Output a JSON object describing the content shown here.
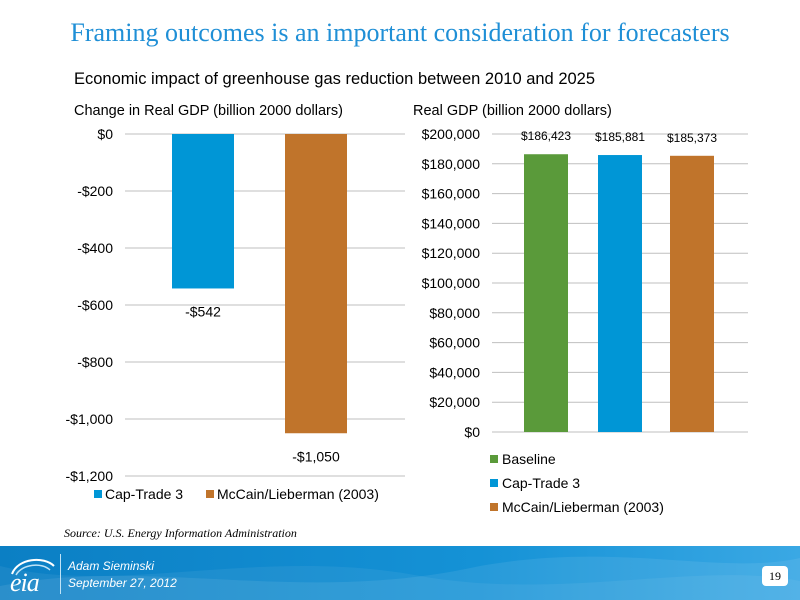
{
  "slide": {
    "title": "Framing outcomes is an important consideration for forecasters",
    "subtitle": "Economic impact of greenhouse gas reduction between 2010 and 2025",
    "source": "Source:  U.S. Energy Information Administration",
    "presenter": "Adam Sieminski",
    "date": "September 27, 2012",
    "page_number": "19",
    "logo_text": "eia",
    "accent_color": "#1f8fd6"
  },
  "chart_data": [
    {
      "type": "bar",
      "title": "Change in Real GDP (billion 2000 dollars)",
      "categories": [
        "Cap-Trade 3",
        "McCain/Lieberman (2003)"
      ],
      "values": [
        -542,
        -1050
      ],
      "data_labels": [
        "-$542",
        "-$1,050"
      ],
      "colors": [
        "#0096d6",
        "#c0742b"
      ],
      "ylim": [
        -1200,
        0
      ],
      "yticks": [
        0,
        -200,
        -400,
        -600,
        -800,
        -1000,
        -1200
      ],
      "ytick_labels": [
        "$0",
        "-$200",
        "-$400",
        "-$600",
        "-$800",
        "-$1,000",
        "-$1,200"
      ],
      "grid": true,
      "legend": [
        "Cap-Trade 3",
        "McCain/Lieberman (2003)"
      ],
      "legend_position": "bottom"
    },
    {
      "type": "bar",
      "title": "Real GDP (billion 2000 dollars)",
      "categories": [
        "Baseline",
        "Cap-Trade 3",
        "McCain/Lieberman (2003)"
      ],
      "values": [
        186423,
        185881,
        185373
      ],
      "data_labels": [
        "$186,423",
        "$185,881",
        "$185,373"
      ],
      "colors": [
        "#5a9a3a",
        "#0096d6",
        "#c0742b"
      ],
      "ylim": [
        0,
        200000
      ],
      "yticks": [
        200000,
        180000,
        160000,
        140000,
        120000,
        100000,
        80000,
        60000,
        40000,
        20000,
        0
      ],
      "ytick_labels": [
        "$200,000",
        "$180,000",
        "$160,000",
        "$140,000",
        "$120,000",
        "$100,000",
        "$80,000",
        "$60,000",
        "$40,000",
        "$20,000",
        "$0"
      ],
      "grid": true,
      "legend": [
        "Baseline",
        "Cap-Trade 3",
        "McCain/Lieberman (2003)"
      ],
      "legend_position": "bottom"
    }
  ]
}
